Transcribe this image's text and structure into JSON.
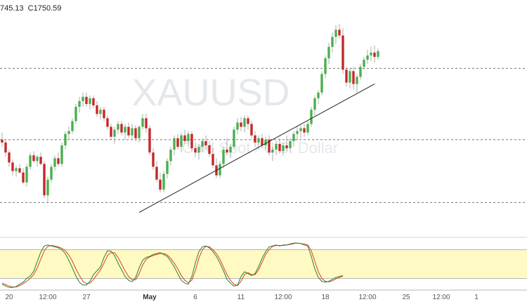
{
  "header": {
    "ohlc_partial": "745.13",
    "ohlc_close": "C1750.59"
  },
  "watermark": {
    "symbol": "XAUUSD",
    "description": "Gold Spot / U.S. Dollar"
  },
  "colors": {
    "bull": "#4caf50",
    "bear": "#c62828",
    "stoch_k": "#2e7d32",
    "stoch_d": "#d84315",
    "stoch_band": "#fff9c4",
    "grid_dash": "#444444"
  },
  "chart_data": {
    "type": "candlestick",
    "price_candles": [
      [
        1727,
        1732,
        1722,
        1725
      ],
      [
        1725,
        1727,
        1715,
        1718
      ],
      [
        1718,
        1720,
        1708,
        1711
      ],
      [
        1711,
        1713,
        1702,
        1705
      ],
      [
        1705,
        1709,
        1701,
        1707
      ],
      [
        1707,
        1710,
        1703,
        1704
      ],
      [
        1704,
        1707,
        1696,
        1697
      ],
      [
        1697,
        1710,
        1694,
        1708
      ],
      [
        1708,
        1718,
        1706,
        1716
      ],
      [
        1716,
        1719,
        1711,
        1712
      ],
      [
        1712,
        1716,
        1708,
        1715
      ],
      [
        1715,
        1718,
        1709,
        1710
      ],
      [
        1710,
        1712,
        1686,
        1688
      ],
      [
        1688,
        1701,
        1683,
        1699
      ],
      [
        1699,
        1710,
        1697,
        1708
      ],
      [
        1708,
        1716,
        1705,
        1714
      ],
      [
        1714,
        1718,
        1708,
        1710
      ],
      [
        1710,
        1725,
        1708,
        1723
      ],
      [
        1723,
        1733,
        1720,
        1731
      ],
      [
        1731,
        1736,
        1727,
        1733
      ],
      [
        1733,
        1742,
        1731,
        1740
      ],
      [
        1740,
        1752,
        1738,
        1750
      ],
      [
        1750,
        1757,
        1746,
        1754
      ],
      [
        1754,
        1760,
        1750,
        1757
      ],
      [
        1757,
        1760,
        1750,
        1752
      ],
      [
        1752,
        1758,
        1748,
        1756
      ],
      [
        1756,
        1758,
        1749,
        1751
      ],
      [
        1751,
        1754,
        1743,
        1745
      ],
      [
        1745,
        1750,
        1741,
        1748
      ],
      [
        1748,
        1750,
        1740,
        1742
      ],
      [
        1742,
        1744,
        1734,
        1736
      ],
      [
        1736,
        1738,
        1727,
        1729
      ],
      [
        1729,
        1736,
        1724,
        1734
      ],
      [
        1734,
        1740,
        1731,
        1738
      ],
      [
        1738,
        1740,
        1730,
        1732
      ],
      [
        1732,
        1738,
        1727,
        1736
      ],
      [
        1736,
        1739,
        1728,
        1730
      ],
      [
        1730,
        1738,
        1727,
        1735
      ],
      [
        1735,
        1737,
        1726,
        1728
      ],
      [
        1728,
        1737,
        1725,
        1736
      ],
      [
        1736,
        1745,
        1734,
        1742
      ],
      [
        1742,
        1745,
        1732,
        1735
      ],
      [
        1735,
        1737,
        1716,
        1718
      ],
      [
        1718,
        1721,
        1706,
        1708
      ],
      [
        1708,
        1712,
        1697,
        1699
      ],
      [
        1699,
        1704,
        1690,
        1692
      ],
      [
        1692,
        1705,
        1690,
        1703
      ],
      [
        1703,
        1714,
        1700,
        1712
      ],
      [
        1712,
        1722,
        1709,
        1720
      ],
      [
        1720,
        1730,
        1716,
        1728
      ],
      [
        1728,
        1731,
        1720,
        1722
      ],
      [
        1722,
        1732,
        1718,
        1730
      ],
      [
        1730,
        1734,
        1724,
        1726
      ],
      [
        1726,
        1733,
        1722,
        1731
      ],
      [
        1731,
        1733,
        1719,
        1721
      ],
      [
        1721,
        1725,
        1715,
        1718
      ],
      [
        1718,
        1724,
        1713,
        1722
      ],
      [
        1722,
        1728,
        1718,
        1726
      ],
      [
        1726,
        1730,
        1720,
        1723
      ],
      [
        1723,
        1726,
        1715,
        1717
      ],
      [
        1717,
        1721,
        1707,
        1709
      ],
      [
        1709,
        1714,
        1700,
        1702
      ],
      [
        1702,
        1712,
        1700,
        1710
      ],
      [
        1710,
        1722,
        1707,
        1720
      ],
      [
        1720,
        1728,
        1716,
        1718
      ],
      [
        1718,
        1724,
        1714,
        1722
      ],
      [
        1722,
        1736,
        1720,
        1734
      ],
      [
        1734,
        1742,
        1731,
        1739
      ],
      [
        1739,
        1743,
        1733,
        1736
      ],
      [
        1736,
        1744,
        1732,
        1742
      ],
      [
        1742,
        1744,
        1734,
        1738
      ],
      [
        1738,
        1740,
        1728,
        1730
      ],
      [
        1730,
        1733,
        1722,
        1725
      ],
      [
        1725,
        1730,
        1720,
        1728
      ],
      [
        1728,
        1731,
        1721,
        1723
      ],
      [
        1723,
        1729,
        1720,
        1727
      ],
      [
        1727,
        1730,
        1716,
        1718
      ],
      [
        1718,
        1722,
        1712,
        1720
      ],
      [
        1720,
        1726,
        1716,
        1724
      ],
      [
        1724,
        1728,
        1717,
        1719
      ],
      [
        1719,
        1725,
        1716,
        1723
      ],
      [
        1723,
        1730,
        1719,
        1721
      ],
      [
        1721,
        1728,
        1718,
        1726
      ],
      [
        1726,
        1733,
        1722,
        1731
      ],
      [
        1731,
        1736,
        1727,
        1733
      ],
      [
        1733,
        1737,
        1728,
        1735
      ],
      [
        1735,
        1738,
        1729,
        1732
      ],
      [
        1732,
        1740,
        1730,
        1738
      ],
      [
        1738,
        1750,
        1736,
        1748
      ],
      [
        1748,
        1758,
        1744,
        1756
      ],
      [
        1756,
        1762,
        1752,
        1760
      ],
      [
        1760,
        1775,
        1758,
        1773
      ],
      [
        1773,
        1786,
        1770,
        1784
      ],
      [
        1784,
        1795,
        1780,
        1792
      ],
      [
        1792,
        1802,
        1788,
        1799
      ],
      [
        1799,
        1807,
        1794,
        1804
      ],
      [
        1804,
        1808,
        1798,
        1800
      ],
      [
        1800,
        1805,
        1773,
        1776
      ],
      [
        1776,
        1778,
        1764,
        1767
      ],
      [
        1767,
        1777,
        1763,
        1775
      ],
      [
        1775,
        1778,
        1762,
        1766
      ],
      [
        1766,
        1773,
        1760,
        1771
      ],
      [
        1771,
        1780,
        1769,
        1778
      ],
      [
        1778,
        1785,
        1776,
        1783
      ],
      [
        1783,
        1790,
        1780,
        1786
      ],
      [
        1786,
        1792,
        1782,
        1788
      ],
      [
        1788,
        1793,
        1781,
        1785
      ],
      [
        1785,
        1791,
        1783,
        1789
      ]
    ],
    "stochastic_k": [
      8,
      4,
      1,
      1,
      3,
      8,
      12,
      20,
      25,
      35,
      55,
      75,
      88,
      90,
      88,
      86,
      84,
      80,
      72,
      58,
      42,
      25,
      12,
      6,
      6,
      14,
      28,
      36,
      44,
      64,
      78,
      77,
      68,
      52,
      38,
      24,
      16,
      13,
      22,
      42,
      58,
      64,
      66,
      70,
      72,
      74,
      70,
      66,
      56,
      44,
      30,
      16,
      10,
      8,
      24,
      52,
      76,
      86,
      88,
      84,
      76,
      66,
      52,
      36,
      18,
      10,
      4,
      6,
      24,
      34,
      30,
      26,
      30,
      45,
      62,
      76,
      86,
      88,
      90,
      88,
      90,
      90,
      92,
      94,
      94,
      93,
      90,
      88,
      66,
      40,
      22,
      14,
      12,
      14,
      18,
      22,
      24,
      26
    ],
    "stochastic_d": [
      10,
      7,
      4,
      2,
      2,
      5,
      9,
      14,
      20,
      28,
      42,
      60,
      78,
      87,
      89,
      88,
      86,
      83,
      78,
      69,
      56,
      40,
      26,
      14,
      9,
      10,
      18,
      28,
      38,
      52,
      68,
      74,
      74,
      64,
      50,
      36,
      24,
      17,
      17,
      30,
      48,
      60,
      65,
      68,
      70,
      72,
      72,
      69,
      62,
      52,
      40,
      26,
      16,
      11,
      16,
      36,
      62,
      80,
      87,
      86,
      80,
      72,
      60,
      44,
      28,
      16,
      8,
      5,
      14,
      28,
      32,
      28,
      28,
      38,
      54,
      70,
      80,
      87,
      89,
      89,
      89,
      90,
      91,
      93,
      94,
      93,
      92,
      90,
      78,
      56,
      34,
      20,
      14,
      13,
      15,
      19,
      22,
      25
    ],
    "price_ylim": [
      1660,
      1815
    ],
    "stoch_ylim": [
      0,
      100
    ],
    "horizontal_levels": [
      1777,
      1727,
      1683
    ],
    "trendline": [
      [
        39,
        1676
      ],
      [
        106,
        1766
      ]
    ],
    "stoch_band": [
      20,
      80
    ],
    "x_tick_labels": [
      {
        "label": "20",
        "bar": 2
      },
      {
        "label": "12:00",
        "bar": 13
      },
      {
        "label": "27",
        "bar": 24
      },
      {
        "label": "May",
        "bar": 42
      },
      {
        "label": "6",
        "bar": 55
      },
      {
        "label": "11",
        "bar": 68
      },
      {
        "label": "12:00",
        "bar": 80
      },
      {
        "label": "18",
        "bar": 92
      },
      {
        "label": "12:00",
        "bar": 104
      },
      {
        "label": "25",
        "bar": 115
      },
      {
        "label": "12:00",
        "bar": 125
      },
      {
        "label": "1",
        "bar": 135
      }
    ]
  }
}
